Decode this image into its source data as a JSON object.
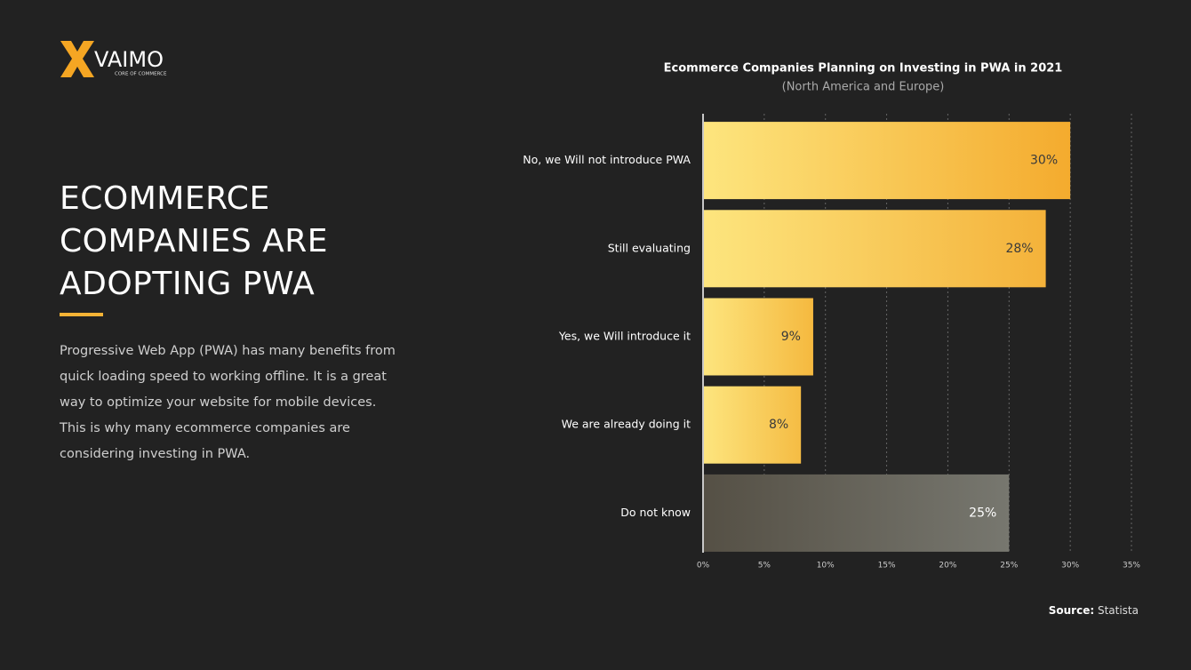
{
  "logo": {
    "name": "VAIMO",
    "tagline": "CORE OF COMMERCE"
  },
  "headline": [
    "ECOMMERCE",
    "COMPANIES ARE",
    "ADOPTING PWA"
  ],
  "body": "Progressive Web App (PWA) has many benefits from quick loading speed to working offline. It is a great way to optimize your website for mobile devices. This is why many ecommerce companies are considering investing in PWA.",
  "source": {
    "label": "Source:",
    "text": "Statista"
  },
  "chart_data": {
    "type": "bar",
    "orientation": "horizontal",
    "title": "Ecommerce Companies Planning on Investing in PWA in 2021",
    "subtitle": "(North America and Europe)",
    "categories": [
      "No, we Will not introduce PWA",
      "Still evaluating",
      "Yes, we Will introduce it",
      "We are already doing it",
      "Do not know"
    ],
    "values": [
      30,
      28,
      9,
      8,
      25
    ],
    "value_labels": [
      "30%",
      "28%",
      "9%",
      "8%",
      "25%"
    ],
    "colors": [
      {
        "from": "#fde57e",
        "to": "#f4ab2e",
        "label": "#3a3a3a"
      },
      {
        "from": "#fde57e",
        "to": "#f4b23a",
        "label": "#3a3a3a"
      },
      {
        "from": "#fde57e",
        "to": "#f5b93f",
        "label": "#3a3a3a"
      },
      {
        "from": "#fde57e",
        "to": "#f5bc44",
        "label": "#3a3a3a"
      },
      {
        "from": "#555045",
        "to": "#77776f",
        "label": "#ffffff"
      }
    ],
    "xlim": [
      0,
      35
    ],
    "xticks": [
      {
        "value": 0,
        "label": "0%"
      },
      {
        "value": 5,
        "label": "5%"
      },
      {
        "value": 10,
        "label": "10%"
      },
      {
        "value": 15,
        "label": "15%"
      },
      {
        "value": 20,
        "label": "20%"
      },
      {
        "value": 25,
        "label": "25%"
      },
      {
        "value": 30,
        "label": "30%"
      },
      {
        "value": 35,
        "label": "35%"
      }
    ],
    "grid": true
  }
}
